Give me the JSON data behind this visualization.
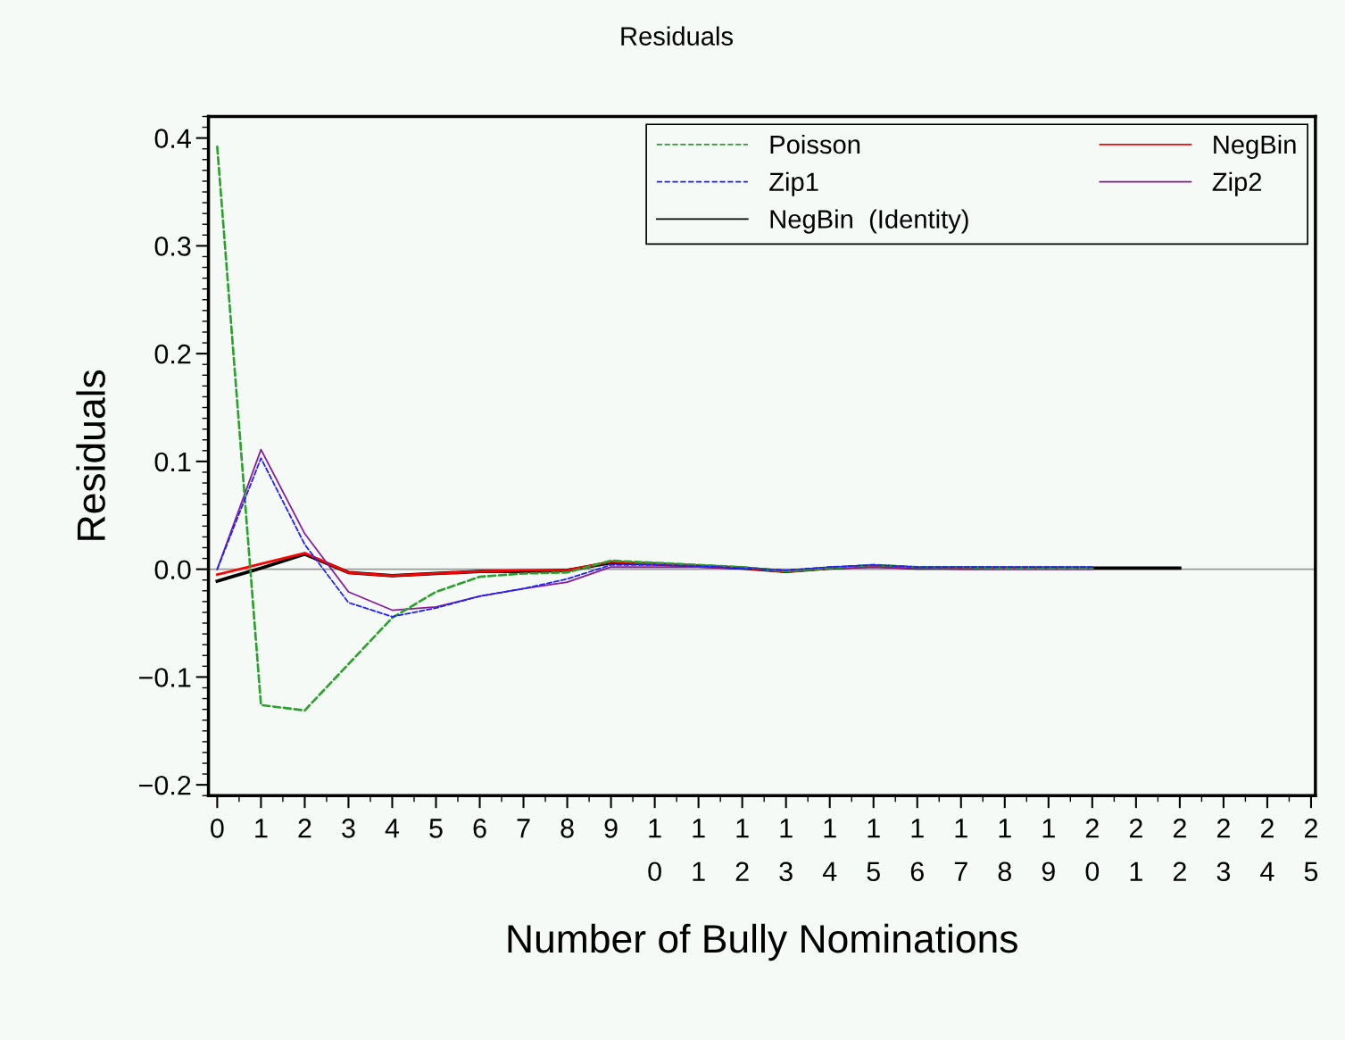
{
  "chart_data": {
    "type": "line",
    "title": "Residuals",
    "xlabel": "Number of Bully Nominations",
    "ylabel": "Residuals",
    "series": [
      {
        "name": "Poisson",
        "color": "#2ca02c",
        "line_style": "dashed",
        "x": [
          0,
          1,
          2,
          3,
          4,
          5,
          6,
          7,
          8,
          9,
          10,
          11,
          12,
          13,
          14,
          15,
          16,
          17,
          18,
          19,
          20
        ],
        "values": [
          0.392,
          -0.126,
          -0.131,
          -0.088,
          -0.045,
          -0.021,
          -0.007,
          -0.004,
          -0.003,
          0.008,
          0.006,
          0.004,
          0.002,
          -0.002,
          0.001,
          0.004,
          0.002,
          0.002,
          0.001,
          0.001,
          0.001
        ]
      },
      {
        "name": "Zip1",
        "color": "#1f1fff",
        "line_style": "dashed",
        "x": [
          0,
          1,
          2,
          3,
          4,
          5,
          6,
          7,
          8,
          9,
          10,
          11,
          12,
          13,
          14,
          15,
          16,
          17,
          18,
          19,
          20
        ],
        "values": [
          0.0,
          0.103,
          0.023,
          -0.031,
          -0.044,
          -0.036,
          -0.025,
          -0.018,
          -0.009,
          0.004,
          0.004,
          0.003,
          0.001,
          -0.001,
          0.002,
          0.004,
          0.002,
          0.002,
          0.002,
          0.002,
          0.002
        ]
      },
      {
        "name": "NegBin  (Identity)",
        "color": "#000000",
        "line_style": "solid",
        "x": [
          0,
          1,
          2,
          3,
          4,
          5,
          6,
          7,
          8,
          9,
          10,
          11,
          12,
          13,
          14,
          15,
          16,
          17,
          18,
          19,
          20,
          21,
          22
        ],
        "values": [
          -0.011,
          0.001,
          0.014,
          -0.003,
          -0.006,
          -0.004,
          -0.002,
          -0.002,
          -0.001,
          0.006,
          0.005,
          0.003,
          0.001,
          -0.002,
          0.001,
          0.003,
          0.001,
          0.001,
          0.001,
          0.001,
          0.001,
          0.001,
          0.001
        ]
      },
      {
        "name": "NegBin",
        "color": "#ff0000",
        "line_style": "solid",
        "x": [
          0,
          1,
          2,
          3,
          4,
          5,
          6,
          7,
          8,
          9,
          10,
          11,
          12,
          13,
          14,
          15,
          16,
          17,
          18,
          19,
          20
        ],
        "values": [
          -0.005,
          0.005,
          0.015,
          -0.003,
          -0.006,
          -0.004,
          -0.002,
          -0.001,
          -0.001,
          0.007,
          0.005,
          0.003,
          0.001,
          -0.002,
          0.001,
          0.003,
          0.001,
          0.001,
          0.001,
          0.001,
          0.001
        ]
      },
      {
        "name": "Zip2",
        "color": "#8b1a9b",
        "line_style": "solid",
        "x": [
          0,
          1,
          2,
          3,
          4,
          5,
          6,
          7,
          8,
          9,
          10,
          11,
          12,
          13,
          14,
          15,
          16,
          17,
          18,
          19,
          20
        ],
        "values": [
          0.0,
          0.111,
          0.033,
          -0.021,
          -0.038,
          -0.035,
          -0.025,
          -0.018,
          -0.012,
          0.002,
          0.002,
          0.002,
          0.001,
          -0.001,
          0.001,
          0.002,
          0.001,
          0.0,
          0.0,
          0.0,
          0.0
        ]
      }
    ],
    "xlim": [
      -0.2,
      25.1
    ],
    "ylim": [
      -0.21,
      0.42
    ],
    "xticks": [
      0,
      1,
      2,
      3,
      4,
      5,
      6,
      7,
      8,
      9,
      {
        "value": 10,
        "label": "1\n0"
      },
      {
        "value": 11,
        "label": "1\n1"
      },
      {
        "value": 12,
        "label": "1\n2"
      },
      {
        "value": 13,
        "label": "1\n3"
      },
      {
        "value": 14,
        "label": "1\n4"
      },
      {
        "value": 15,
        "label": "1\n5"
      },
      {
        "value": 16,
        "label": "1\n6"
      },
      {
        "value": 17,
        "label": "1\n7"
      },
      {
        "value": 18,
        "label": "1\n8"
      },
      {
        "value": 19,
        "label": "1\n9"
      },
      {
        "value": 20,
        "label": "2\n0"
      },
      {
        "value": 21,
        "label": "2\n1"
      },
      {
        "value": 22,
        "label": "2\n2"
      },
      {
        "value": 23,
        "label": "2\n3"
      },
      {
        "value": 24,
        "label": "2\n4"
      },
      {
        "value": 25,
        "label": "2\n5"
      }
    ],
    "yticks": [
      {
        "value": 0.4,
        "label": "0.4"
      },
      {
        "value": 0.3,
        "label": "0.3"
      },
      {
        "value": 0.2,
        "label": "0.2"
      },
      {
        "value": 0.1,
        "label": "0.1"
      },
      {
        "value": 0.0,
        "label": "0.0"
      },
      {
        "value": -0.1,
        "label": "−0.1"
      },
      {
        "value": -0.2,
        "label": "−0.2"
      }
    ],
    "ref_lines": [
      {
        "axis": "y",
        "value": 0,
        "color": "#999999"
      }
    ],
    "legend": "top right",
    "grid": false,
    "marker": "none"
  }
}
